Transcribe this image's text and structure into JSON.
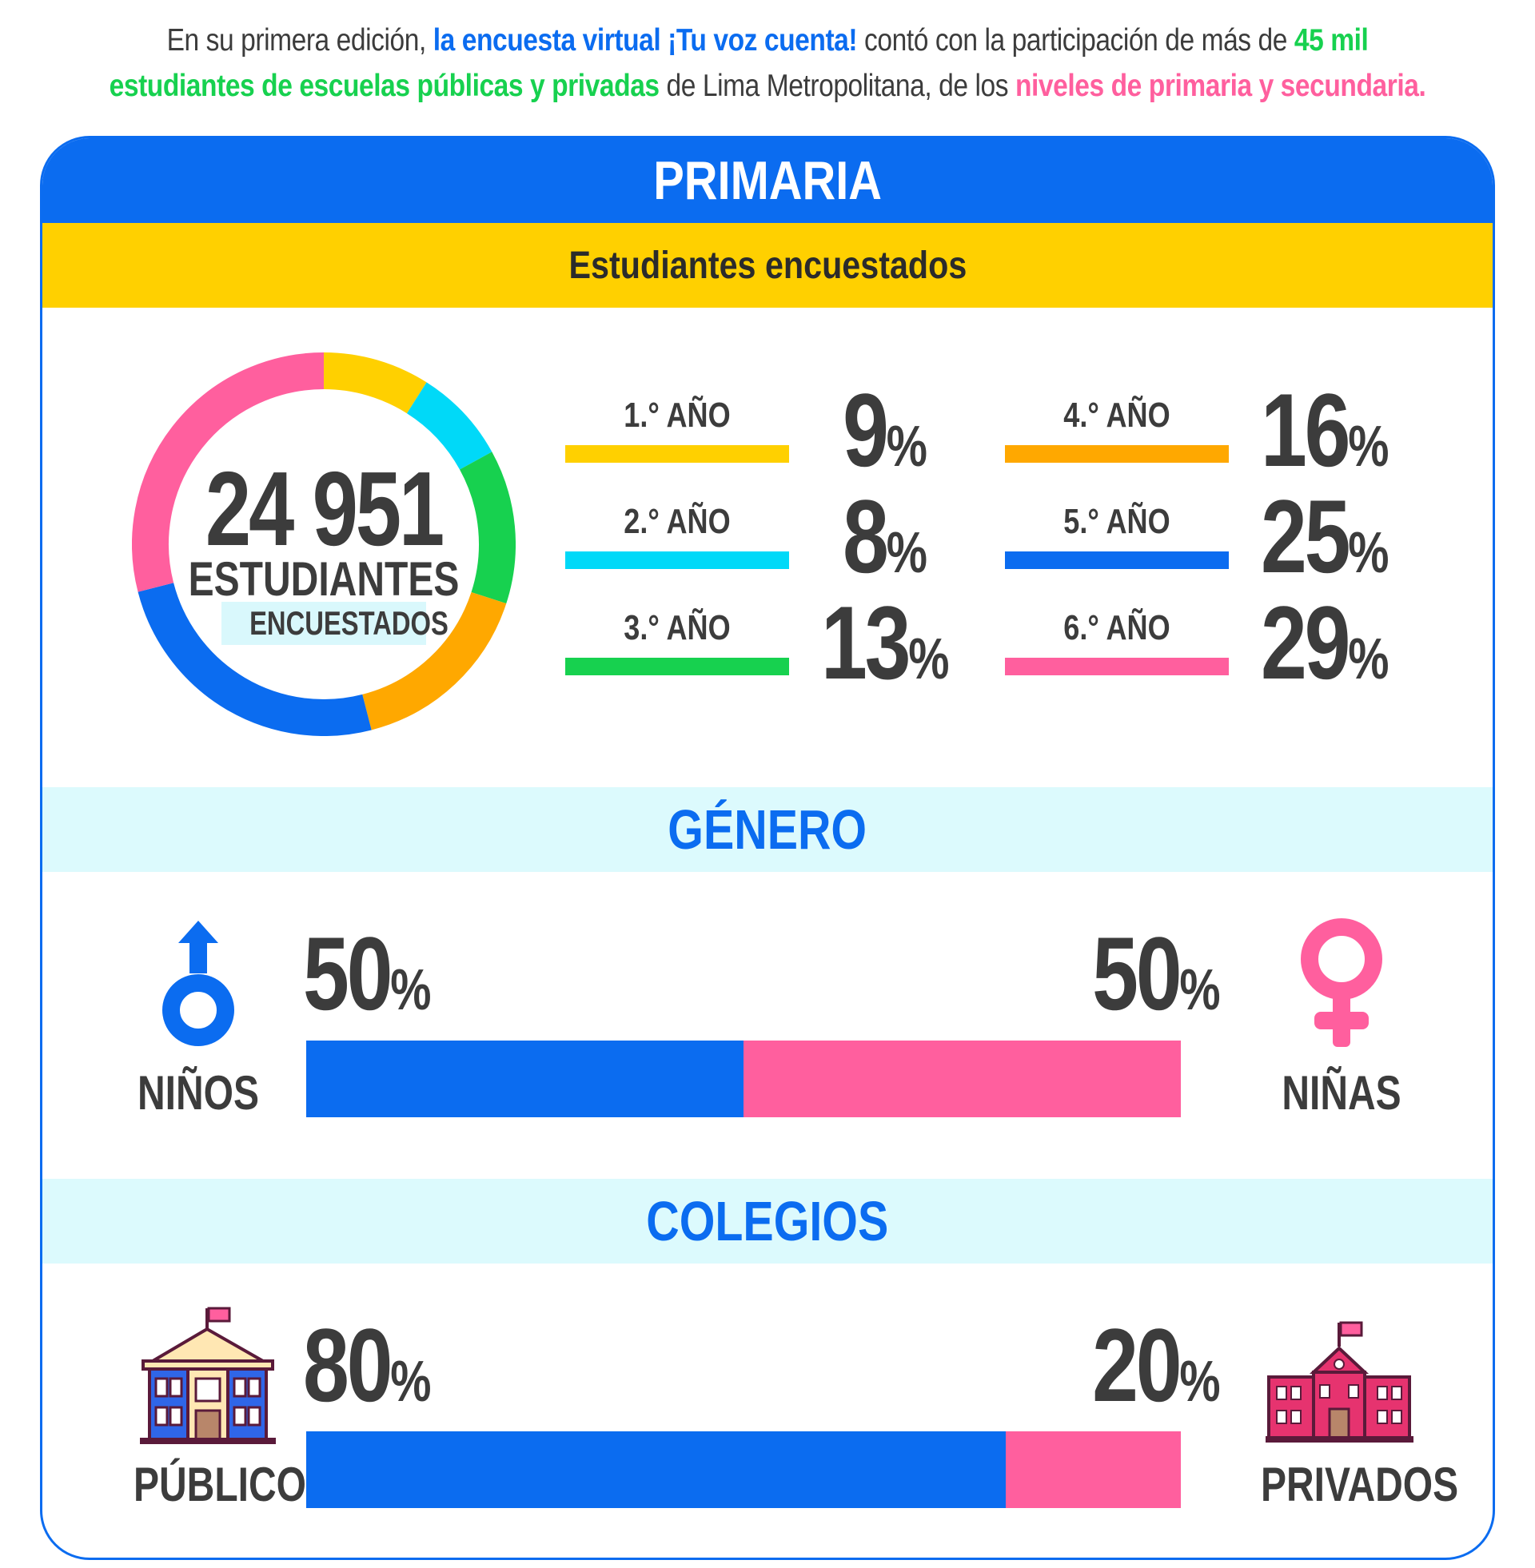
{
  "intro": {
    "p1": "En su primera edición, ",
    "p2": "la encuesta virtual ¡Tu voz cuenta!",
    "p3": " contó con la participación de más de ",
    "p4": "45 mil",
    "p5": "estudiantes de escuelas públicas y privadas",
    "p6": " de Lima Metropolitana, de los ",
    "p7": "niveles de primaria y secundaria."
  },
  "card": {
    "title": "PRIMARIA",
    "subtitle": "Estudiantes encuestados"
  },
  "colors": {
    "blue": "#0b6cf0",
    "pink": "#ff5f9e",
    "yellow": "#ffd000",
    "cyan": "#00d9f8",
    "green": "#17d14f",
    "orange": "#ffa800",
    "light_cyan": "#dcfafd",
    "dark_text": "#3c3c3c"
  },
  "total": {
    "number": "24 951",
    "label": "ESTUDIANTES",
    "sublabel": "ENCUESTADOS"
  },
  "percent_sign": "%",
  "chart_data": [
    {
      "type": "pie",
      "title": "Estudiantes encuestados",
      "categories": [
        "1.° AÑO",
        "2.° AÑO",
        "3.° AÑO",
        "4.° AÑO",
        "5.° AÑO",
        "6.° AÑO"
      ],
      "values": [
        9,
        8,
        13,
        16,
        25,
        29
      ],
      "colors": [
        "#ffd000",
        "#00d9f8",
        "#17d14f",
        "#ffa800",
        "#0b6cf0",
        "#ff5f9e"
      ]
    },
    {
      "type": "bar",
      "title": "GÉNERO",
      "categories": [
        "NIÑOS",
        "NIÑAS"
      ],
      "values": [
        50,
        50
      ],
      "colors": [
        "#0b6cf0",
        "#ff5f9e"
      ]
    },
    {
      "type": "bar",
      "title": "COLEGIOS",
      "categories": [
        "PÚBLICOS",
        "PRIVADOS"
      ],
      "values": [
        80,
        20
      ],
      "colors": [
        "#0b6cf0",
        "#ff5f9e"
      ]
    }
  ],
  "gender": {
    "title": "GÉNERO",
    "left_label": "NIÑOS",
    "right_label": "NIÑAS",
    "left_value": 50,
    "right_value": 50,
    "left_icon": "male-symbol-icon",
    "right_icon": "female-symbol-icon"
  },
  "schools": {
    "title": "COLEGIOS",
    "left_label": "PÚBLICOS",
    "right_label": "PRIVADOS",
    "left_value": 80,
    "right_value": 20,
    "left_icon": "public-school-building-icon",
    "right_icon": "private-school-building-icon"
  }
}
